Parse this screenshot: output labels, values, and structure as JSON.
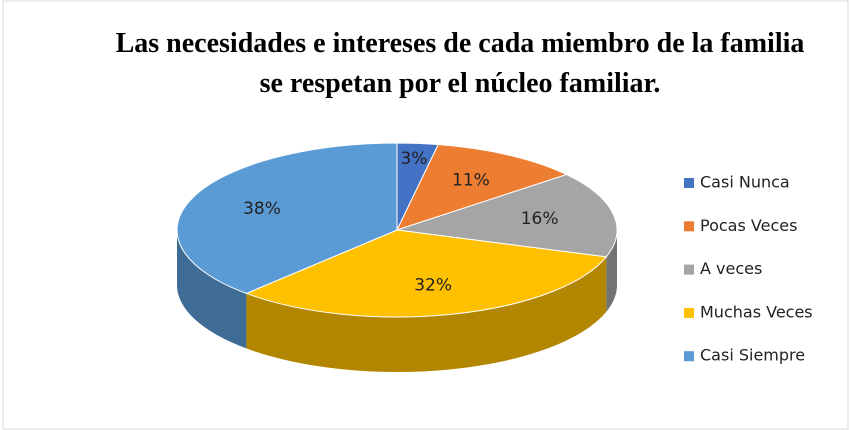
{
  "chart_data": {
    "type": "pie",
    "title": "Las necesidades e intereses de cada miembro de la familia se respetan por el núcleo familiar.",
    "categories": [
      "Casi Nunca",
      "Pocas Veces",
      "A veces",
      "Muchas Veces",
      "Casi Siempre"
    ],
    "values": [
      3,
      11,
      16,
      32,
      38
    ],
    "value_labels": [
      "3%",
      "11%",
      "16%",
      "32%",
      "38%"
    ],
    "colors": [
      "#4472c4",
      "#ed7d31",
      "#a5a5a5",
      "#ffc000",
      "#5b9bd5"
    ],
    "legend": "right"
  }
}
